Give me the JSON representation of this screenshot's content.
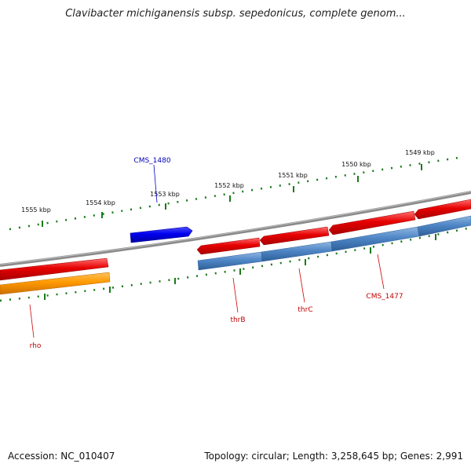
{
  "title": "Clavibacter michiganensis subsp. sepedonicus, complete genom...",
  "footer": {
    "accession": "Accession: NC_010407",
    "summary": "Topology: circular; Length: 3,258,645 bp; Genes: 2,991"
  },
  "colors": {
    "backbone": "#8a8a8a",
    "forward_gene": "#e60000",
    "reverse_gene": "#4f86c6",
    "orange_gene": "#ff9900",
    "blue_gene": "#0000ee",
    "tick": "#1a7a1a"
  },
  "kbp_labels": [
    "1549 kbp",
    "1550 kbp",
    "1551 kbp",
    "1552 kbp",
    "1553 kbp",
    "1554 kbp",
    "1555 kbp"
  ],
  "gene_labels": {
    "cms1480": "CMS_1480",
    "rho": "rho",
    "thrB": "thrB",
    "thrC": "thrC",
    "cms1477": "CMS_1477"
  }
}
